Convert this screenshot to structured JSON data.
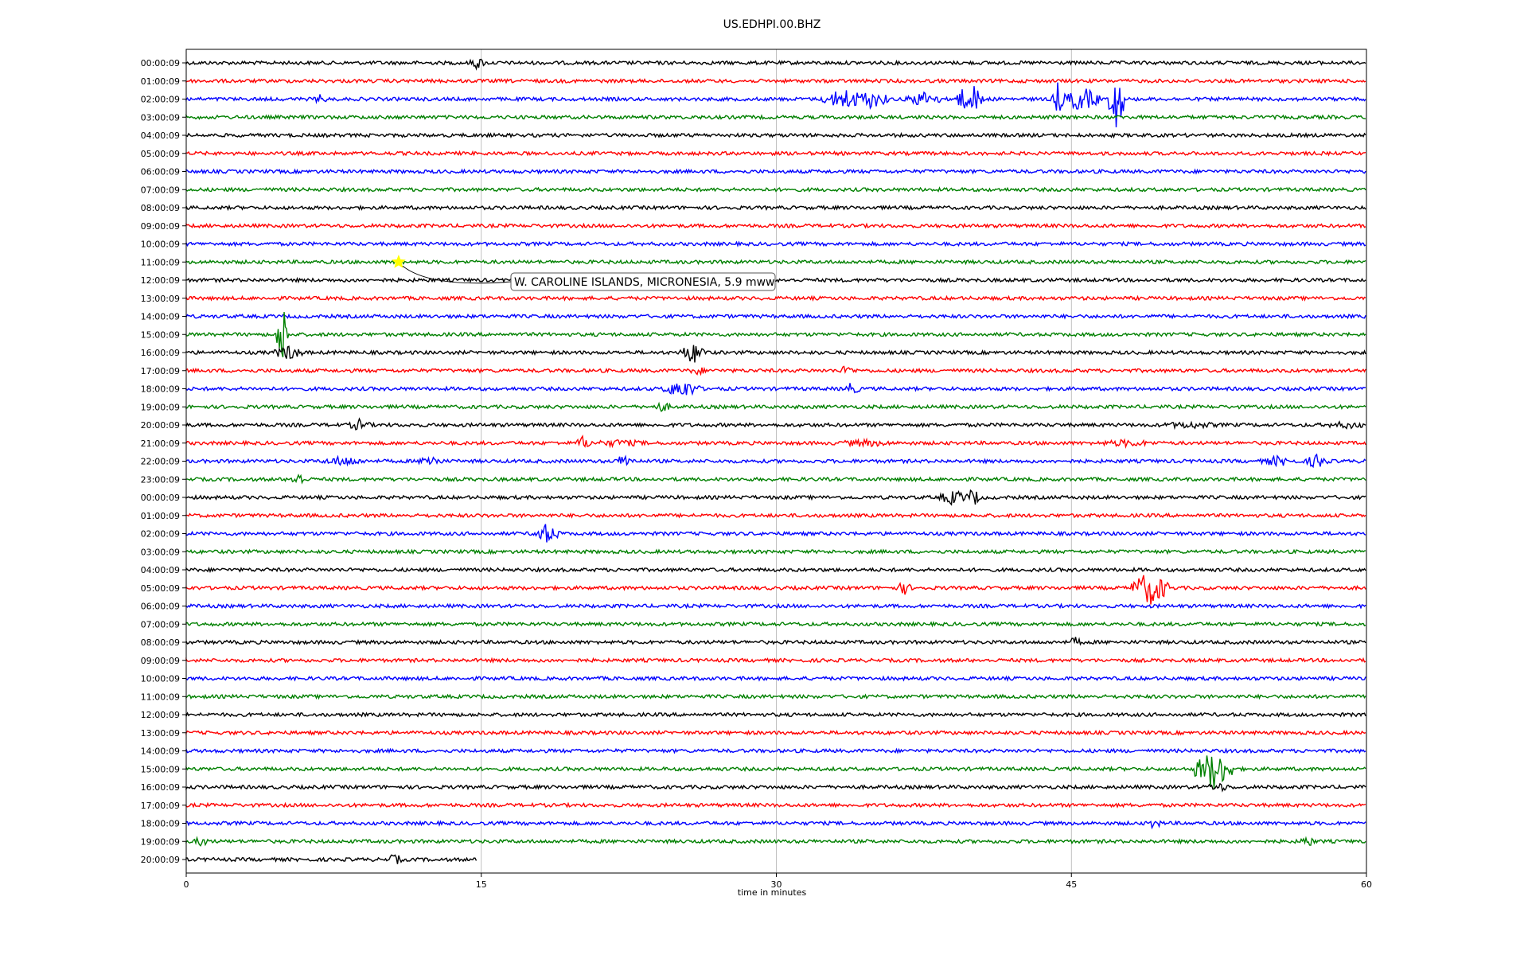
{
  "chart_data": {
    "type": "line",
    "title": "US.EDHPI.00.BHZ",
    "xlabel": "time in minutes",
    "ylabel": "",
    "xlim": [
      0,
      60
    ],
    "x_ticks": [
      "0",
      "15",
      "30",
      "45",
      "60"
    ],
    "grid": "vertical",
    "colors": [
      "#000000",
      "#ff0000",
      "#0000ff",
      "#008000"
    ],
    "rows": [
      "00:00:09",
      "01:00:09",
      "02:00:09",
      "03:00:09",
      "04:00:09",
      "05:00:09",
      "06:00:09",
      "07:00:09",
      "08:00:09",
      "09:00:09",
      "10:00:09",
      "11:00:09",
      "12:00:09",
      "13:00:09",
      "14:00:09",
      "15:00:09",
      "16:00:09",
      "17:00:09",
      "18:00:09",
      "19:00:09",
      "20:00:09",
      "21:00:09",
      "22:00:09",
      "23:00:09",
      "00:00:09",
      "01:00:09",
      "02:00:09",
      "03:00:09",
      "04:00:09",
      "05:00:09",
      "06:00:09",
      "07:00:09",
      "08:00:09",
      "09:00:09",
      "10:00:09",
      "11:00:09",
      "12:00:09",
      "13:00:09",
      "14:00:09",
      "15:00:09",
      "16:00:09",
      "17:00:09",
      "18:00:09",
      "19:00:09",
      "20:00:09"
    ],
    "last_row_end_minute": 14.8,
    "events": [
      {
        "row": 0,
        "minute": 14.8,
        "amp": 9,
        "width": 0.4
      },
      {
        "row": 2,
        "minute": 6.8,
        "amp": 6,
        "width": 0.5
      },
      {
        "row": 2,
        "minute": 33.5,
        "amp": 14,
        "width": 1.2
      },
      {
        "row": 2,
        "minute": 34.8,
        "amp": 12,
        "width": 1.0
      },
      {
        "row": 2,
        "minute": 37.5,
        "amp": 10,
        "width": 1.0
      },
      {
        "row": 2,
        "minute": 39.5,
        "amp": 14,
        "width": 0.6
      },
      {
        "row": 2,
        "minute": 40.0,
        "amp": 18,
        "width": 0.6
      },
      {
        "row": 2,
        "minute": 44.3,
        "amp": 22,
        "width": 0.3
      },
      {
        "row": 2,
        "minute": 45.5,
        "amp": 16,
        "width": 1.0
      },
      {
        "row": 2,
        "minute": 47.3,
        "amp": 40,
        "width": 0.4
      },
      {
        "row": 15,
        "minute": 4.9,
        "amp": 40,
        "width": 0.3
      },
      {
        "row": 16,
        "minute": 5.2,
        "amp": 10,
        "width": 0.8
      },
      {
        "row": 16,
        "minute": 25.8,
        "amp": 14,
        "width": 0.7
      },
      {
        "row": 17,
        "minute": 26.0,
        "amp": 6,
        "width": 0.5
      },
      {
        "row": 17,
        "minute": 33.6,
        "amp": 8,
        "width": 0.4
      },
      {
        "row": 18,
        "minute": 25.2,
        "amp": 12,
        "width": 1.0
      },
      {
        "row": 18,
        "minute": 33.8,
        "amp": 8,
        "width": 0.5
      },
      {
        "row": 19,
        "minute": 24.2,
        "amp": 7,
        "width": 0.5
      },
      {
        "row": 20,
        "minute": 8.8,
        "amp": 8,
        "width": 0.6
      },
      {
        "row": 20,
        "minute": 51.0,
        "amp": 5,
        "width": 2.0
      },
      {
        "row": 20,
        "minute": 59.0,
        "amp": 5,
        "width": 1.5
      },
      {
        "row": 21,
        "minute": 20.2,
        "amp": 10,
        "width": 0.4
      },
      {
        "row": 21,
        "minute": 22.0,
        "amp": 5,
        "width": 2.0
      },
      {
        "row": 21,
        "minute": 34.5,
        "amp": 5,
        "width": 2.0
      },
      {
        "row": 21,
        "minute": 47.8,
        "amp": 5,
        "width": 2.0
      },
      {
        "row": 22,
        "minute": 8.0,
        "amp": 7,
        "width": 1.2
      },
      {
        "row": 22,
        "minute": 12.4,
        "amp": 9,
        "width": 0.6
      },
      {
        "row": 22,
        "minute": 22.3,
        "amp": 10,
        "width": 0.5
      },
      {
        "row": 22,
        "minute": 55.5,
        "amp": 7,
        "width": 1.0
      },
      {
        "row": 22,
        "minute": 57.5,
        "amp": 10,
        "width": 0.6
      },
      {
        "row": 23,
        "minute": 5.7,
        "amp": 10,
        "width": 0.4
      },
      {
        "row": 24,
        "minute": 39.0,
        "amp": 10,
        "width": 0.8
      },
      {
        "row": 24,
        "minute": 40.0,
        "amp": 12,
        "width": 0.4
      },
      {
        "row": 26,
        "minute": 18.3,
        "amp": 13,
        "width": 0.7
      },
      {
        "row": 29,
        "minute": 36.5,
        "amp": 9,
        "width": 0.4
      },
      {
        "row": 29,
        "minute": 49.0,
        "amp": 22,
        "width": 1.0
      },
      {
        "row": 32,
        "minute": 45.2,
        "amp": 7,
        "width": 0.4
      },
      {
        "row": 39,
        "minute": 52.2,
        "amp": 26,
        "width": 1.0
      },
      {
        "row": 40,
        "minute": 52.5,
        "amp": 6,
        "width": 0.8
      },
      {
        "row": 42,
        "minute": 49.2,
        "amp": 8,
        "width": 0.4
      },
      {
        "row": 43,
        "minute": 0.8,
        "amp": 7,
        "width": 0.5
      },
      {
        "row": 43,
        "minute": 57.0,
        "amp": 8,
        "width": 0.4
      },
      {
        "row": 44,
        "minute": 10.6,
        "amp": 8,
        "width": 0.4
      }
    ],
    "annotation": {
      "row": 11,
      "minute": 10.8,
      "marker": "star",
      "marker_color": "#ffff00",
      "text": "W. CAROLINE ISLANDS, MICRONESIA, 5.9 mww"
    }
  }
}
